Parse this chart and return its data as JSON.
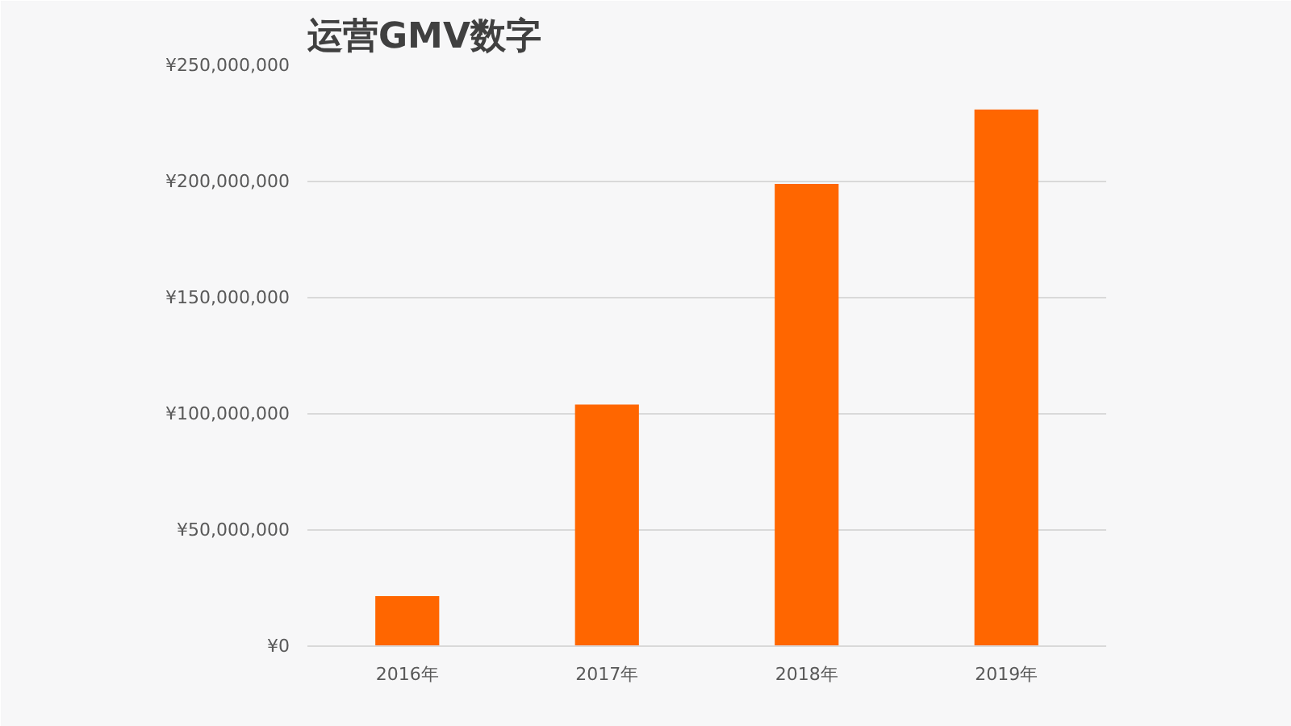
{
  "chart_data": {
    "type": "bar",
    "title": "运营GMV数字",
    "categories": [
      "2016年",
      "2017年",
      "2018年",
      "2019年"
    ],
    "values": [
      21500000,
      104000000,
      199000000,
      231000000
    ],
    "color": "#ff6600",
    "ylim": [
      0,
      250000000
    ],
    "yticks": [
      {
        "value": 0,
        "label": "¥0"
      },
      {
        "value": 50000000,
        "label": "¥50,000,000"
      },
      {
        "value": 100000000,
        "label": "¥100,000,000"
      },
      {
        "value": 150000000,
        "label": "¥150,000,000"
      },
      {
        "value": 200000000,
        "label": "¥200,000,000"
      },
      {
        "value": 250000000,
        "label": "¥250,000,000"
      }
    ],
    "grid": "y"
  }
}
